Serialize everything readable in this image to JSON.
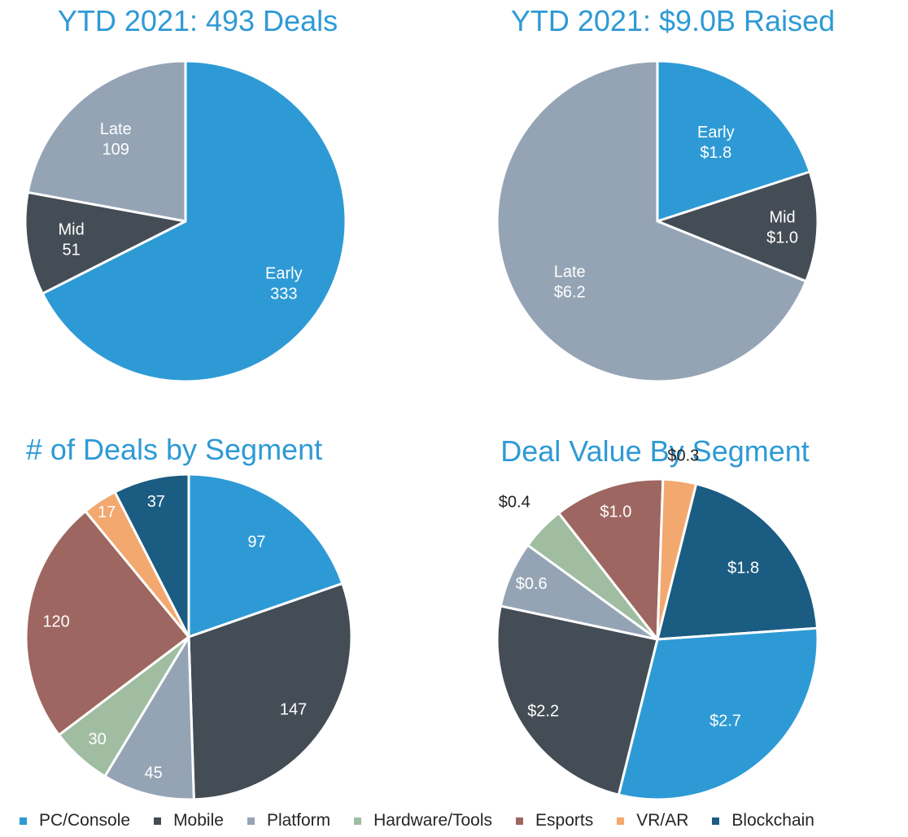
{
  "colors": {
    "early": "#2e9ad5",
    "mid": "#444c55",
    "late": "#95a4b5",
    "pc_console": "#2e9ad5",
    "mobile": "#444c55",
    "platform": "#95a4b5",
    "hardware_tools": "#a0bda2",
    "esports": "#9e6660",
    "vr_ar": "#f2a86e",
    "blockchain": "#1b5c82",
    "title": "#2e9ad5"
  },
  "chart_data": [
    {
      "type": "pie",
      "title": "YTD 2021: 493 Deals",
      "slices": [
        {
          "name": "Early",
          "value": 333,
          "label": "333",
          "color_key": "early"
        },
        {
          "name": "Mid",
          "value": 51,
          "label": "51",
          "color_key": "mid"
        },
        {
          "name": "Late",
          "value": 109,
          "label": "109",
          "color_key": "late"
        }
      ]
    },
    {
      "type": "pie",
      "title": "YTD 2021: $9.0B Raised",
      "slices": [
        {
          "name": "Early",
          "value": 1.8,
          "label": "$1.8",
          "color_key": "early"
        },
        {
          "name": "Mid",
          "value": 1.0,
          "label": "$1.0",
          "color_key": "mid"
        },
        {
          "name": "Late",
          "value": 6.2,
          "label": "$6.2",
          "color_key": "late"
        }
      ]
    },
    {
      "type": "pie",
      "title": "# of Deals by Segment",
      "slices": [
        {
          "name": "PC/Console",
          "value": 97,
          "label": "97",
          "color_key": "pc_console"
        },
        {
          "name": "Mobile",
          "value": 147,
          "label": "147",
          "color_key": "mobile"
        },
        {
          "name": "Platform",
          "value": 45,
          "label": "45",
          "color_key": "platform"
        },
        {
          "name": "Hardware/Tools",
          "value": 30,
          "label": "30",
          "color_key": "hardware_tools"
        },
        {
          "name": "Esports",
          "value": 120,
          "label": "120",
          "color_key": "esports"
        },
        {
          "name": "VR/AR",
          "value": 17,
          "label": "17",
          "color_key": "vr_ar"
        },
        {
          "name": "Blockchain",
          "value": 37,
          "label": "37",
          "color_key": "blockchain"
        }
      ]
    },
    {
      "type": "pie",
      "title": "Deal Value By Segment",
      "slices": [
        {
          "name": "Blockchain",
          "value": 1.8,
          "label": "$1.8",
          "color_key": "blockchain"
        },
        {
          "name": "PC/Console",
          "value": 2.7,
          "label": "$2.7",
          "color_key": "pc_console"
        },
        {
          "name": "Mobile",
          "value": 2.2,
          "label": "$2.2",
          "color_key": "mobile"
        },
        {
          "name": "Platform",
          "value": 0.6,
          "label": "$0.6",
          "color_key": "platform"
        },
        {
          "name": "Hardware/Tools",
          "value": 0.4,
          "label": "$0.4",
          "color_key": "hardware_tools"
        },
        {
          "name": "Esports",
          "value": 1.0,
          "label": "$1.0",
          "color_key": "esports"
        },
        {
          "name": "VR/AR",
          "value": 0.3,
          "label": "$0.3",
          "color_key": "vr_ar"
        }
      ]
    }
  ],
  "legend": [
    {
      "label": "PC/Console",
      "color_key": "pc_console"
    },
    {
      "label": "Mobile",
      "color_key": "mobile"
    },
    {
      "label": "Platform",
      "color_key": "platform"
    },
    {
      "label": "Hardware/Tools",
      "color_key": "hardware_tools"
    },
    {
      "label": "Esports",
      "color_key": "esports"
    },
    {
      "label": "VR/AR",
      "color_key": "vr_ar"
    },
    {
      "label": "Blockchain",
      "color_key": "blockchain"
    }
  ]
}
